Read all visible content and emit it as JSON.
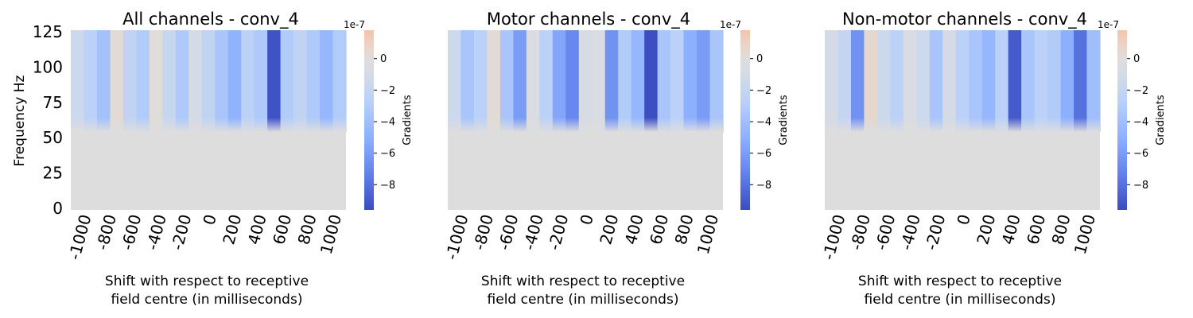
{
  "chart_data": [
    {
      "type": "heatmap",
      "title": "All channels - conv_4",
      "xlabel_line1": "Shift with respect to receptive",
      "xlabel_line2": "field centre (in milliseconds)",
      "ylabel": "Frequency Hz",
      "x_tick_labels": [
        "-1000",
        "-800",
        "-600",
        "-400",
        "-200",
        "0",
        "200",
        "400",
        "600",
        "800",
        "1000"
      ],
      "y_tick_labels": [
        "125",
        "100",
        "75",
        "50",
        "25",
        "0"
      ],
      "y_ticks": [
        125,
        100,
        75,
        50,
        25,
        0
      ],
      "ylim": [
        0,
        125
      ],
      "column_gradients_e7": [
        -1.5,
        -2.5,
        -3.8,
        0.3,
        -2.2,
        -3.0,
        0.1,
        -1.8,
        -3.2,
        -1.0,
        -2.2,
        -3.5,
        -4.8,
        -2.5,
        -3.2,
        -9.3,
        -3.0,
        -2.2,
        -3.2,
        -4.5,
        -3.0
      ],
      "colorbar": {
        "label": "Gradients",
        "offset_text": "1e-7",
        "range": [
          -9.6,
          1.8
        ],
        "tick_values": [
          0,
          -2,
          -4,
          -6,
          -8
        ],
        "tick_labels": [
          "0",
          "−2",
          "−4",
          "−6",
          "−8"
        ]
      }
    },
    {
      "type": "heatmap",
      "title": "Motor channels - conv_4",
      "xlabel_line1": "Shift with respect to receptive",
      "xlabel_line2": "field centre (in milliseconds)",
      "ylabel": "",
      "x_tick_labels": [
        "-1000",
        "-800",
        "-600",
        "-400",
        "-200",
        "0",
        "200",
        "400",
        "600",
        "800",
        "1000"
      ],
      "y_tick_labels": [],
      "ylim": [
        0,
        125
      ],
      "column_gradients_e7": [
        -1.5,
        -3.5,
        -2.5,
        0.3,
        -3.5,
        -6.0,
        -0.5,
        -2.5,
        -5.5,
        -7.0,
        -0.8,
        -0.5,
        -6.5,
        -3.0,
        -4.5,
        -9.5,
        -3.5,
        -2.5,
        -5.0,
        -6.0,
        -3.5
      ],
      "colorbar": {
        "label": "Gradients",
        "offset_text": "1e-7",
        "range": [
          -9.6,
          1.8
        ],
        "tick_values": [
          0,
          -2,
          -4,
          -6,
          -8
        ],
        "tick_labels": [
          "0",
          "−2",
          "−4",
          "−6",
          "−8"
        ]
      }
    },
    {
      "type": "heatmap",
      "title": "Non-motor channels - conv_4",
      "xlabel_line1": "Shift with respect to receptive",
      "xlabel_line2": "field centre (in milliseconds)",
      "ylabel": "",
      "x_tick_labels": [
        "-1000",
        "-800",
        "-600",
        "-400",
        "-200",
        "0",
        "200",
        "400",
        "600",
        "800",
        "1000"
      ],
      "y_tick_labels": [],
      "ylim": [
        0,
        125
      ],
      "column_gradients_e7": [
        -1.0,
        -2.0,
        -6.5,
        0.5,
        -1.5,
        -2.5,
        -0.5,
        -1.5,
        -3.5,
        -1.0,
        -2.5,
        -3.5,
        -4.5,
        -2.5,
        -9.0,
        -3.5,
        -2.5,
        -3.0,
        -5.0,
        -8.0,
        -4.0
      ],
      "colorbar": {
        "label": "Gradients",
        "offset_text": "1e-7",
        "range": [
          -9.6,
          1.8
        ],
        "tick_values": [
          0,
          -2,
          -4,
          -6,
          -8
        ],
        "tick_labels": [
          "0",
          "−2",
          "−4",
          "−6",
          "−8"
        ]
      }
    }
  ],
  "colors": {
    "colormap_low": "#3b4cc0",
    "colormap_mid": "#dddddd",
    "colormap_high": "#f4c4ac"
  }
}
